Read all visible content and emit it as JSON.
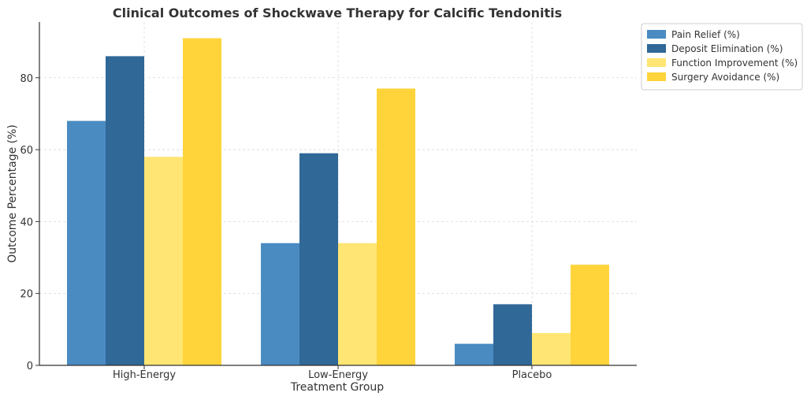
{
  "chart_data": {
    "type": "bar",
    "title": "Clinical Outcomes of Shockwave Therapy for Calcific Tendonitis",
    "xlabel": "Treatment Group",
    "ylabel": "Outcome Percentage (%)",
    "categories": [
      "High-Energy",
      "Low-Energy",
      "Placebo"
    ],
    "ylim": [
      0,
      95.5
    ],
    "yticks": [
      0,
      20,
      40,
      60,
      80
    ],
    "grid": true,
    "legend_position": "top-right, outside plot",
    "series": [
      {
        "name": "Pain Relief (%)",
        "color": "#4a8bc2",
        "values": [
          68,
          34,
          6
        ]
      },
      {
        "name": "Deposit Elimination (%)",
        "color": "#306898",
        "values": [
          86,
          59,
          17
        ]
      },
      {
        "name": "Function Improvement (%)",
        "color": "#ffe573",
        "values": [
          58,
          34,
          9
        ]
      },
      {
        "name": "Surgery Avoidance (%)",
        "color": "#ffd43b",
        "values": [
          91,
          77,
          28
        ]
      }
    ]
  }
}
